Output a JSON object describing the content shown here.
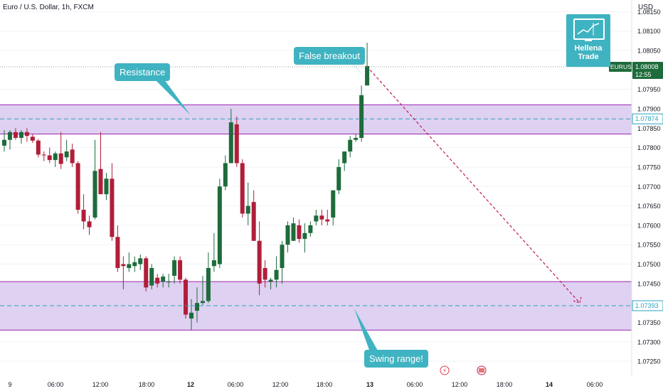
{
  "header": {
    "symbol_title": "Euro / U.S. Dollar, 1h, FXCM",
    "currency": "USD"
  },
  "logo": {
    "line1": "Hellena",
    "line2": "Trade"
  },
  "annotations": {
    "resistance": "Resistance",
    "false_breakout": "False breakout",
    "swing_range": "Swing range!"
  },
  "colors": {
    "up": "#1e6b3b",
    "down": "#b01e3a",
    "zone_fill": "#d9c9ee",
    "zone_border": "#9c27b0",
    "dashed": "#2aa2bf",
    "bubble": "#3fb3c1",
    "projection": "#c2185b",
    "price_tag": "#1e6b3b"
  },
  "chart_data": {
    "type": "candlestick",
    "ylim": [
      1.0721,
      1.0818
    ],
    "y_ticks": [
      "1.08150",
      "1.08100",
      "1.08050",
      "1.07950",
      "1.07900",
      "1.07850",
      "1.07800",
      "1.07750",
      "1.07700",
      "1.07650",
      "1.07600",
      "1.07550",
      "1.07500",
      "1.07450",
      "1.07350",
      "1.07300",
      "1.07250"
    ],
    "x_ticks": [
      "9",
      "06:00",
      "12:00",
      "18:00",
      "12",
      "06:00",
      "12:00",
      "18:00",
      "13",
      "06:00",
      "12:00",
      "18:00",
      "14",
      "06:00"
    ],
    "resistance_zone": [
      1.07835,
      1.0791
    ],
    "support_zone": [
      1.0733,
      1.07455
    ],
    "resistance_level": 1.07874,
    "support_level": 1.07393,
    "current_price": 1.08008,
    "current_symbol": "EURUSD",
    "current_time": "12:55",
    "projection": {
      "from": 1.08,
      "to": 1.074
    },
    "candles": [
      {
        "o": 1.07805,
        "h": 1.07845,
        "l": 1.0779,
        "c": 1.0782
      },
      {
        "o": 1.0782,
        "h": 1.07845,
        "l": 1.07795,
        "c": 1.0784
      },
      {
        "o": 1.0784,
        "h": 1.0785,
        "l": 1.0782,
        "c": 1.07825
      },
      {
        "o": 1.07825,
        "h": 1.07845,
        "l": 1.0781,
        "c": 1.0784
      },
      {
        "o": 1.0784,
        "h": 1.0785,
        "l": 1.07815,
        "c": 1.0783
      },
      {
        "o": 1.07828,
        "h": 1.07835,
        "l": 1.07812,
        "c": 1.07818
      },
      {
        "o": 1.07818,
        "h": 1.07822,
        "l": 1.07775,
        "c": 1.07782
      },
      {
        "o": 1.07782,
        "h": 1.0779,
        "l": 1.07765,
        "c": 1.0778
      },
      {
        "o": 1.0778,
        "h": 1.078,
        "l": 1.0776,
        "c": 1.07768
      },
      {
        "o": 1.07768,
        "h": 1.0779,
        "l": 1.0775,
        "c": 1.07785
      },
      {
        "o": 1.07785,
        "h": 1.0784,
        "l": 1.07745,
        "c": 1.07758
      },
      {
        "o": 1.07775,
        "h": 1.0782,
        "l": 1.07765,
        "c": 1.0779
      },
      {
        "o": 1.07795,
        "h": 1.0781,
        "l": 1.0775,
        "c": 1.0776
      },
      {
        "o": 1.0776,
        "h": 1.07765,
        "l": 1.0763,
        "c": 1.0764
      },
      {
        "o": 1.0764,
        "h": 1.0768,
        "l": 1.0759,
        "c": 1.0761
      },
      {
        "o": 1.0761,
        "h": 1.07625,
        "l": 1.07575,
        "c": 1.07595
      },
      {
        "o": 1.0762,
        "h": 1.0782,
        "l": 1.07615,
        "c": 1.0774
      },
      {
        "o": 1.07745,
        "h": 1.0784,
        "l": 1.0768,
        "c": 1.0768
      },
      {
        "o": 1.0768,
        "h": 1.07735,
        "l": 1.07665,
        "c": 1.0772
      },
      {
        "o": 1.0772,
        "h": 1.0776,
        "l": 1.0756,
        "c": 1.0757
      },
      {
        "o": 1.0757,
        "h": 1.076,
        "l": 1.0748,
        "c": 1.0749
      },
      {
        "o": 1.075,
        "h": 1.0752,
        "l": 1.07435,
        "c": 1.07495
      },
      {
        "o": 1.0749,
        "h": 1.0753,
        "l": 1.0748,
        "c": 1.075
      },
      {
        "o": 1.07495,
        "h": 1.0752,
        "l": 1.0748,
        "c": 1.07505
      },
      {
        "o": 1.075,
        "h": 1.07525,
        "l": 1.07485,
        "c": 1.07515
      },
      {
        "o": 1.07515,
        "h": 1.0752,
        "l": 1.0743,
        "c": 1.0744
      },
      {
        "o": 1.07445,
        "h": 1.075,
        "l": 1.07435,
        "c": 1.0749
      },
      {
        "o": 1.07465,
        "h": 1.07475,
        "l": 1.0744,
        "c": 1.0745
      },
      {
        "o": 1.07455,
        "h": 1.07475,
        "l": 1.0744,
        "c": 1.07468
      },
      {
        "o": 1.07455,
        "h": 1.07475,
        "l": 1.0744,
        "c": 1.07455
      },
      {
        "o": 1.0747,
        "h": 1.0752,
        "l": 1.0745,
        "c": 1.0751
      },
      {
        "o": 1.0751,
        "h": 1.0752,
        "l": 1.0745,
        "c": 1.0746
      },
      {
        "o": 1.0746,
        "h": 1.07465,
        "l": 1.0736,
        "c": 1.0737
      },
      {
        "o": 1.0736,
        "h": 1.0741,
        "l": 1.0733,
        "c": 1.07375
      },
      {
        "o": 1.0738,
        "h": 1.0744,
        "l": 1.0735,
        "c": 1.074
      },
      {
        "o": 1.074,
        "h": 1.0747,
        "l": 1.07395,
        "c": 1.07405
      },
      {
        "o": 1.07405,
        "h": 1.0753,
        "l": 1.074,
        "c": 1.0749
      },
      {
        "o": 1.07495,
        "h": 1.0758,
        "l": 1.0748,
        "c": 1.0751
      },
      {
        "o": 1.075,
        "h": 1.0772,
        "l": 1.0749,
        "c": 1.077
      },
      {
        "o": 1.077,
        "h": 1.0778,
        "l": 1.0769,
        "c": 1.0776
      },
      {
        "o": 1.0776,
        "h": 1.079,
        "l": 1.0776,
        "c": 1.07865
      },
      {
        "o": 1.0786,
        "h": 1.0788,
        "l": 1.0775,
        "c": 1.0776
      },
      {
        "o": 1.0776,
        "h": 1.0777,
        "l": 1.0762,
        "c": 1.0763
      },
      {
        "o": 1.0763,
        "h": 1.0771,
        "l": 1.076,
        "c": 1.0765
      },
      {
        "o": 1.0766,
        "h": 1.0769,
        "l": 1.0756,
        "c": 1.0756
      },
      {
        "o": 1.0756,
        "h": 1.0761,
        "l": 1.0742,
        "c": 1.0745
      },
      {
        "o": 1.0749,
        "h": 1.0751,
        "l": 1.0744,
        "c": 1.0746
      },
      {
        "o": 1.07455,
        "h": 1.07465,
        "l": 1.07435,
        "c": 1.0746
      },
      {
        "o": 1.0746,
        "h": 1.0752,
        "l": 1.0744,
        "c": 1.07485
      },
      {
        "o": 1.0749,
        "h": 1.0756,
        "l": 1.0745,
        "c": 1.0755
      },
      {
        "o": 1.0755,
        "h": 1.0761,
        "l": 1.0753,
        "c": 1.076
      },
      {
        "o": 1.0756,
        "h": 1.0762,
        "l": 1.0756,
        "c": 1.07605
      },
      {
        "o": 1.076,
        "h": 1.07615,
        "l": 1.07555,
        "c": 1.07565
      },
      {
        "o": 1.07565,
        "h": 1.07605,
        "l": 1.0753,
        "c": 1.0758
      },
      {
        "o": 1.0758,
        "h": 1.0761,
        "l": 1.0757,
        "c": 1.076
      },
      {
        "o": 1.0761,
        "h": 1.0764,
        "l": 1.076,
        "c": 1.07625
      },
      {
        "o": 1.07625,
        "h": 1.0764,
        "l": 1.076,
        "c": 1.07615
      },
      {
        "o": 1.07615,
        "h": 1.0764,
        "l": 1.076,
        "c": 1.0761
      },
      {
        "o": 1.0762,
        "h": 1.0769,
        "l": 1.076,
        "c": 1.0769
      },
      {
        "o": 1.0769,
        "h": 1.0777,
        "l": 1.0768,
        "c": 1.0775
      },
      {
        "o": 1.0776,
        "h": 1.0779,
        "l": 1.0774,
        "c": 1.0779
      },
      {
        "o": 1.0779,
        "h": 1.0783,
        "l": 1.07775,
        "c": 1.0782
      },
      {
        "o": 1.0782,
        "h": 1.07835,
        "l": 1.07815,
        "c": 1.07825
      },
      {
        "o": 1.07825,
        "h": 1.0796,
        "l": 1.07815,
        "c": 1.07935
      },
      {
        "o": 1.0796,
        "h": 1.0807,
        "l": 1.0796,
        "c": 1.0801
      }
    ]
  }
}
